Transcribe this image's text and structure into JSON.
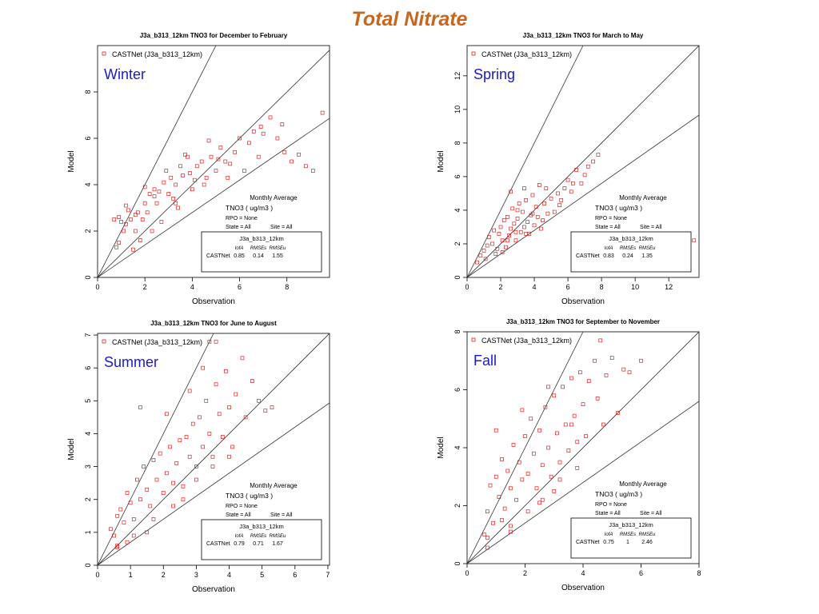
{
  "page": {
    "title": "Total Nitrate"
  },
  "chart_data": [
    {
      "type": "scatter",
      "title": "J3a_b313_12km TNO3 for December to February",
      "season": "Winter",
      "xlabel": "Observation",
      "ylabel": "Model",
      "xlim": [
        0,
        9.8
      ],
      "ylim": [
        0,
        10
      ],
      "xticks": [
        "0",
        "2",
        "4",
        "6",
        "8"
      ],
      "yticks": [
        "0",
        "2",
        "4",
        "6",
        "8"
      ],
      "legend": "CASTNet (J3a_b313_12km)",
      "legend_position": "top-left",
      "reference_lines": [
        2,
        1,
        0.7
      ],
      "stats": {
        "heading": "Monthly Average",
        "species": "TNO3  ( ug/m3 )",
        "rpo": "RPO = None",
        "state": "State = All",
        "site": "Site = All",
        "table_title": "J3a_b313_12km",
        "columns": [
          "IofA",
          "RMSEs",
          "RMSEu"
        ],
        "row_label": "CASTNet",
        "values": [
          "0.85",
          "0.14",
          "1.55"
        ]
      },
      "points": [
        [
          0.8,
          1.3
        ],
        [
          0.7,
          2.5
        ],
        [
          0.9,
          2.6
        ],
        [
          1.0,
          2.4
        ],
        [
          1.1,
          2.0
        ],
        [
          1.2,
          2.3
        ],
        [
          1.3,
          2.9
        ],
        [
          1.4,
          2.5
        ],
        [
          1.6,
          2.0
        ],
        [
          1.7,
          2.8
        ],
        [
          1.9,
          2.5
        ],
        [
          2.0,
          3.2
        ],
        [
          2.1,
          2.8
        ],
        [
          2.2,
          3.6
        ],
        [
          2.4,
          3.5
        ],
        [
          2.5,
          3.2
        ],
        [
          2.6,
          3.7
        ],
        [
          2.8,
          4.1
        ],
        [
          3.0,
          3.6
        ],
        [
          3.1,
          4.3
        ],
        [
          3.2,
          3.4
        ],
        [
          3.3,
          4.0
        ],
        [
          3.5,
          4.8
        ],
        [
          3.6,
          4.4
        ],
        [
          3.8,
          5.2
        ],
        [
          3.9,
          4.5
        ],
        [
          4.0,
          3.8
        ],
        [
          4.2,
          4.8
        ],
        [
          4.4,
          5.0
        ],
        [
          4.6,
          4.3
        ],
        [
          4.8,
          5.2
        ],
        [
          5.0,
          4.6
        ],
        [
          5.2,
          5.6
        ],
        [
          5.4,
          5.0
        ],
        [
          5.6,
          4.9
        ],
        [
          5.8,
          5.4
        ],
        [
          6.0,
          6.0
        ],
        [
          6.2,
          4.6
        ],
        [
          6.4,
          5.8
        ],
        [
          6.6,
          6.3
        ],
        [
          6.8,
          5.2
        ],
        [
          7.0,
          6.2
        ],
        [
          7.3,
          6.9
        ],
        [
          7.6,
          6.0
        ],
        [
          7.9,
          5.4
        ],
        [
          8.2,
          5.0
        ],
        [
          8.5,
          5.3
        ],
        [
          8.8,
          4.8
        ],
        [
          9.1,
          4.6
        ],
        [
          9.5,
          7.1
        ],
        [
          1.5,
          1.2
        ],
        [
          1.8,
          1.6
        ],
        [
          2.3,
          2.0
        ],
        [
          2.7,
          2.4
        ],
        [
          3.4,
          3.0
        ],
        [
          4.5,
          4.0
        ],
        [
          5.5,
          4.3
        ],
        [
          1.2,
          3.1
        ],
        [
          2.0,
          3.9
        ],
        [
          2.9,
          4.6
        ],
        [
          3.7,
          5.3
        ],
        [
          4.7,
          5.9
        ],
        [
          0.9,
          1.5
        ],
        [
          1.6,
          2.7
        ],
        [
          2.4,
          3.8
        ],
        [
          3.3,
          3.2
        ],
        [
          4.1,
          4.2
        ],
        [
          5.1,
          5.1
        ],
        [
          6.9,
          6.5
        ],
        [
          7.8,
          6.6
        ]
      ]
    },
    {
      "type": "scatter",
      "title": "J3a_b313_12km TNO3 for March to May",
      "season": "Spring",
      "xlabel": "Observation",
      "ylabel": "Model",
      "xlim": [
        0,
        13.8
      ],
      "ylim": [
        0,
        13.8
      ],
      "xticks": [
        "0",
        "2",
        "4",
        "6",
        "8",
        "10",
        "12"
      ],
      "yticks": [
        "0",
        "2",
        "4",
        "6",
        "8",
        "10",
        "12"
      ],
      "legend": "CASTNet (J3a_b313_12km)",
      "legend_position": "top-left",
      "reference_lines": [
        2,
        1,
        0.7
      ],
      "stats": {
        "heading": "Monthly Average",
        "species": "TNO3  ( ug/m3 )",
        "rpo": "RPO = None",
        "state": "State = All",
        "site": "Site = All",
        "table_title": "J3a_b313_12km",
        "columns": [
          "IofA",
          "RMSEs",
          "RMSEu"
        ],
        "row_label": "CASTNet",
        "values": [
          "0.83",
          "0.24",
          "1.35"
        ]
      },
      "points": [
        [
          0.6,
          0.9
        ],
        [
          0.8,
          1.3
        ],
        [
          1.0,
          1.6
        ],
        [
          1.2,
          1.9
        ],
        [
          1.3,
          2.4
        ],
        [
          1.5,
          2.0
        ],
        [
          1.6,
          2.8
        ],
        [
          1.7,
          1.4
        ],
        [
          1.9,
          2.6
        ],
        [
          2.0,
          3.0
        ],
        [
          2.1,
          2.2
        ],
        [
          2.2,
          3.4
        ],
        [
          2.3,
          1.8
        ],
        [
          2.4,
          3.6
        ],
        [
          2.5,
          2.5
        ],
        [
          2.6,
          2.9
        ],
        [
          2.7,
          4.1
        ],
        [
          2.8,
          3.2
        ],
        [
          2.9,
          2.2
        ],
        [
          3.0,
          3.5
        ],
        [
          3.1,
          4.4
        ],
        [
          3.2,
          2.7
        ],
        [
          3.3,
          3.9
        ],
        [
          3.4,
          3.0
        ],
        [
          3.5,
          4.6
        ],
        [
          3.6,
          3.3
        ],
        [
          3.7,
          2.6
        ],
        [
          3.8,
          3.7
        ],
        [
          3.9,
          4.9
        ],
        [
          4.0,
          3.1
        ],
        [
          4.1,
          4.2
        ],
        [
          4.2,
          3.6
        ],
        [
          4.3,
          5.5
        ],
        [
          4.4,
          2.9
        ],
        [
          4.6,
          4.4
        ],
        [
          4.8,
          3.8
        ],
        [
          5.0,
          4.7
        ],
        [
          5.2,
          3.9
        ],
        [
          5.4,
          5.0
        ],
        [
          5.6,
          4.6
        ],
        [
          5.8,
          5.3
        ],
        [
          6.0,
          5.8
        ],
        [
          6.3,
          5.6
        ],
        [
          6.5,
          6.4
        ],
        [
          6.8,
          5.6
        ],
        [
          7.0,
          6.1
        ],
        [
          7.2,
          6.6
        ],
        [
          7.5,
          6.9
        ],
        [
          7.8,
          7.3
        ],
        [
          13.5,
          2.2
        ],
        [
          2.6,
          5.1
        ],
        [
          3.4,
          5.3
        ],
        [
          1.1,
          1.1
        ],
        [
          1.8,
          1.7
        ],
        [
          2.1,
          1.5
        ],
        [
          2.9,
          2.7
        ],
        [
          3.5,
          2.6
        ],
        [
          4.5,
          3.4
        ],
        [
          5.5,
          4.3
        ],
        [
          2.4,
          2.2
        ],
        [
          3.0,
          4.0
        ],
        [
          3.9,
          3.8
        ],
        [
          4.7,
          5.3
        ],
        [
          6.2,
          5.1
        ]
      ]
    },
    {
      "type": "scatter",
      "title": "J3a_b313_12km TNO3 for June to August",
      "season": "Summer",
      "xlabel": "Observation",
      "ylabel": "Model",
      "xlim": [
        0,
        7.05
      ],
      "ylim": [
        0,
        7.05
      ],
      "xticks": [
        "0",
        "1",
        "2",
        "3",
        "4",
        "5",
        "6",
        "7"
      ],
      "yticks": [
        "0",
        "1",
        "2",
        "3",
        "4",
        "5",
        "6",
        "7"
      ],
      "legend": "CASTNet (J3a_b313_12km)",
      "legend_position": "top-left",
      "reference_lines": [
        2,
        1,
        0.7
      ],
      "stats": {
        "heading": "Monthly Average",
        "species": "TNO3  ( ug/m3 )",
        "rpo": "RPO = None",
        "state": "State = All",
        "site": "Site = All",
        "table_title": "J3a_b313_12km",
        "columns": [
          "IofA",
          "RMSEs",
          "RMSEu"
        ],
        "row_label": "CASTNet",
        "values": [
          "0.79",
          "0.71",
          "1.67"
        ]
      },
      "points": [
        [
          0.4,
          1.1
        ],
        [
          0.5,
          0.9
        ],
        [
          0.6,
          1.5
        ],
        [
          0.6,
          0.6
        ],
        [
          0.7,
          1.7
        ],
        [
          0.8,
          1.3
        ],
        [
          0.9,
          2.2
        ],
        [
          1.0,
          1.9
        ],
        [
          1.1,
          1.4
        ],
        [
          1.2,
          2.6
        ],
        [
          1.3,
          2.0
        ],
        [
          1.4,
          3.0
        ],
        [
          1.5,
          2.3
        ],
        [
          1.6,
          1.8
        ],
        [
          1.7,
          3.2
        ],
        [
          1.8,
          2.6
        ],
        [
          1.9,
          3.4
        ],
        [
          2.0,
          2.2
        ],
        [
          2.1,
          2.8
        ],
        [
          2.2,
          3.6
        ],
        [
          2.3,
          2.5
        ],
        [
          2.4,
          3.1
        ],
        [
          2.5,
          3.8
        ],
        [
          2.6,
          2.4
        ],
        [
          2.7,
          3.9
        ],
        [
          2.8,
          3.3
        ],
        [
          2.9,
          4.3
        ],
        [
          3.0,
          3.0
        ],
        [
          3.1,
          4.5
        ],
        [
          3.2,
          3.6
        ],
        [
          3.3,
          5.0
        ],
        [
          3.4,
          4.0
        ],
        [
          3.5,
          3.3
        ],
        [
          3.6,
          5.5
        ],
        [
          3.7,
          4.6
        ],
        [
          3.8,
          3.9
        ],
        [
          3.9,
          5.9
        ],
        [
          4.0,
          4.8
        ],
        [
          4.1,
          3.6
        ],
        [
          4.2,
          5.2
        ],
        [
          4.4,
          6.3
        ],
        [
          4.5,
          4.5
        ],
        [
          4.7,
          5.6
        ],
        [
          4.9,
          5.0
        ],
        [
          5.1,
          4.7
        ],
        [
          5.3,
          4.8
        ],
        [
          3.4,
          6.8
        ],
        [
          3.6,
          6.8
        ],
        [
          1.3,
          4.8
        ],
        [
          2.1,
          4.6
        ],
        [
          0.6,
          0.55
        ],
        [
          1.5,
          1.0
        ],
        [
          2.3,
          1.8
        ],
        [
          3.0,
          2.6
        ],
        [
          0.9,
          0.7
        ],
        [
          1.1,
          0.9
        ],
        [
          1.7,
          1.4
        ],
        [
          2.6,
          2.0
        ],
        [
          3.5,
          3.0
        ],
        [
          4.0,
          3.3
        ],
        [
          2.8,
          5.3
        ],
        [
          3.2,
          6.0
        ]
      ]
    },
    {
      "type": "scatter",
      "title": "J3a_b313_12km TNO3 for September to November",
      "season": "Fall",
      "xlabel": "Observation",
      "ylabel": "Model",
      "xlim": [
        0,
        8
      ],
      "ylim": [
        0,
        8
      ],
      "xticks": [
        "0",
        "2",
        "4",
        "6",
        "8"
      ],
      "yticks": [
        "0",
        "2",
        "4",
        "6",
        "8"
      ],
      "legend": "CASTNet (J3a_b313_12km)",
      "legend_position": "top-left",
      "reference_lines": [
        2,
        1,
        0.7
      ],
      "stats": {
        "heading": "Monthly Average",
        "species": "TNO3  ( ug/m3 )",
        "rpo": "RPO = None",
        "state": "State = All",
        "site": "Site = All",
        "table_title": "J3a_b313_12km",
        "columns": [
          "IofA",
          "RMSEs",
          "RMSEu"
        ],
        "row_label": "CASTNet",
        "values": [
          "0.75",
          "1",
          "2.46"
        ]
      },
      "points": [
        [
          0.6,
          1.0
        ],
        [
          0.7,
          1.8
        ],
        [
          0.8,
          2.7
        ],
        [
          0.9,
          1.4
        ],
        [
          1.0,
          3.0
        ],
        [
          1.1,
          2.3
        ],
        [
          1.2,
          3.6
        ],
        [
          1.3,
          1.9
        ],
        [
          1.4,
          3.2
        ],
        [
          1.5,
          2.6
        ],
        [
          1.6,
          4.1
        ],
        [
          1.7,
          2.2
        ],
        [
          1.8,
          3.5
        ],
        [
          1.9,
          2.9
        ],
        [
          2.0,
          4.4
        ],
        [
          2.1,
          3.1
        ],
        [
          2.2,
          5.0
        ],
        [
          2.3,
          3.8
        ],
        [
          2.4,
          2.6
        ],
        [
          2.5,
          4.6
        ],
        [
          2.6,
          3.4
        ],
        [
          2.7,
          5.4
        ],
        [
          2.8,
          4.0
        ],
        [
          2.9,
          3.0
        ],
        [
          3.0,
          5.8
        ],
        [
          3.1,
          4.5
        ],
        [
          3.2,
          3.5
        ],
        [
          3.3,
          6.1
        ],
        [
          3.4,
          4.8
        ],
        [
          3.5,
          3.9
        ],
        [
          3.6,
          6.4
        ],
        [
          3.7,
          5.1
        ],
        [
          3.8,
          4.2
        ],
        [
          3.9,
          6.6
        ],
        [
          4.0,
          5.5
        ],
        [
          4.1,
          4.4
        ],
        [
          4.2,
          6.3
        ],
        [
          4.4,
          7.0
        ],
        [
          4.5,
          5.7
        ],
        [
          4.7,
          4.8
        ],
        [
          4.8,
          6.5
        ],
        [
          5.0,
          7.1
        ],
        [
          5.2,
          5.2
        ],
        [
          5.4,
          6.7
        ],
        [
          5.6,
          6.6
        ],
        [
          6.0,
          7.0
        ],
        [
          1.5,
          1.3
        ],
        [
          1.5,
          1.1
        ],
        [
          0.7,
          0.9
        ],
        [
          2.6,
          2.2
        ],
        [
          3.2,
          2.9
        ],
        [
          4.6,
          7.7
        ],
        [
          1.0,
          4.6
        ],
        [
          1.9,
          5.3
        ],
        [
          2.8,
          6.1
        ],
        [
          3.6,
          4.8
        ],
        [
          0.7,
          0.55
        ],
        [
          1.2,
          1.5
        ],
        [
          2.1,
          1.8
        ],
        [
          2.5,
          2.1
        ],
        [
          3.0,
          2.5
        ],
        [
          3.8,
          3.3
        ]
      ]
    }
  ]
}
